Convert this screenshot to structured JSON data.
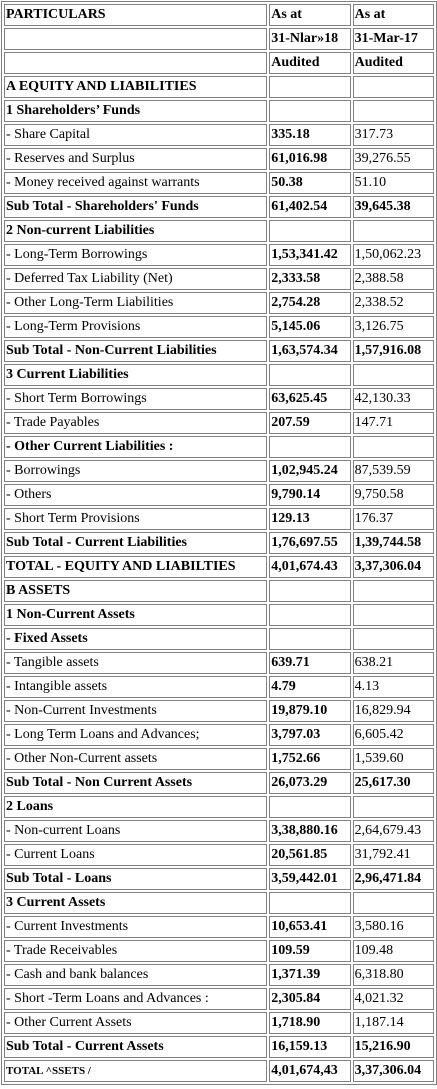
{
  "header": [
    [
      "PARTICULARS",
      "As at",
      "As at"
    ],
    [
      "",
      "31-Nlar»18",
      "31-Mar-17"
    ],
    [
      "",
      "Audited",
      "Audited"
    ]
  ],
  "rows": [
    {
      "label": "A EQUITY AND LIABILITIES",
      "v1": "",
      "v2": "",
      "bold": true,
      "b1": false,
      "b2": false
    },
    {
      "label": "1 Shareholders’ Funds",
      "v1": "",
      "v2": "",
      "bold": true,
      "b1": false,
      "b2": false
    },
    {
      "label": "- Share Capital",
      "v1": "335.18",
      "v2": "317.73",
      "bold": false,
      "b1": true,
      "b2": false
    },
    {
      "label": "- Reserves and Surplus",
      "v1": "61,016.98",
      "v2": "39,276.55",
      "bold": false,
      "b1": true,
      "b2": false
    },
    {
      "label": "- Money received against warrants",
      "v1": "50.38",
      "v2": "51.10",
      "bold": false,
      "b1": true,
      "b2": false
    },
    {
      "label": "Sub Total - Shareholders' Funds",
      "v1": "61,402.54",
      "v2": "39,645.38",
      "bold": true,
      "b1": true,
      "b2": true
    },
    {
      "label": "2 Non-current Liabilities",
      "v1": "",
      "v2": "",
      "bold": true,
      "b1": false,
      "b2": false
    },
    {
      "label": "- Long-Term Borrowings",
      "v1": "1,53,341.42",
      "v2": "1,50,062.23",
      "bold": false,
      "b1": true,
      "b2": false
    },
    {
      "label": "- Deferred Tax Liability (Net)",
      "v1": "2,333.58",
      "v2": "2,388.58",
      "bold": false,
      "b1": true,
      "b2": false
    },
    {
      "label": "- Other Long-Term Liabilities",
      "v1": "2,754.28",
      "v2": "2,338.52",
      "bold": false,
      "b1": true,
      "b2": false
    },
    {
      "label": "- Long-Term Provisions",
      "v1": "5,145.06",
      "v2": "3,126.75",
      "bold": false,
      "b1": true,
      "b2": false
    },
    {
      "label": "Sub Total - Non-Current Liabilities",
      "v1": "1,63,574.34",
      "v2": "1,57,916.08",
      "bold": true,
      "b1": true,
      "b2": true
    },
    {
      "label": "3 Current Liabilities",
      "v1": "",
      "v2": "",
      "bold": true,
      "b1": false,
      "b2": false
    },
    {
      "label": "- Short Term Borrowings",
      "v1": "63,625.45",
      "v2": "42,130.33",
      "bold": false,
      "b1": true,
      "b2": false
    },
    {
      "label": "- Trade Payables",
      "v1": "207.59",
      "v2": "147.71",
      "bold": false,
      "b1": true,
      "b2": false
    },
    {
      "label": "- Other Current Liabilities :",
      "v1": "",
      "v2": "",
      "bold": true,
      "b1": false,
      "b2": false
    },
    {
      "label": "- Borrowings",
      "v1": "1,02,945.24",
      "v2": "87,539.59",
      "bold": false,
      "b1": true,
      "b2": false
    },
    {
      "label": "- Others",
      "v1": "9,790.14",
      "v2": "9,750.58",
      "bold": false,
      "b1": true,
      "b2": false
    },
    {
      "label": "- Short Term Provisions",
      "v1": "129.13",
      "v2": "176.37",
      "bold": false,
      "b1": true,
      "b2": false
    },
    {
      "label": "Sub Total - Current Liabilities",
      "v1": "1,76,697.55",
      "v2": "1,39,744.58",
      "bold": true,
      "b1": true,
      "b2": true
    },
    {
      "label": "TOTAL - EQUITY AND LIABILTIES",
      "v1": "4,01,674.43",
      "v2": "3,37,306.04",
      "bold": true,
      "b1": true,
      "b2": true
    },
    {
      "label": "B ASSETS",
      "v1": "",
      "v2": "",
      "bold": true,
      "b1": false,
      "b2": false
    },
    {
      "label": "1 Non-Current Assets",
      "v1": "",
      "v2": "",
      "bold": true,
      "b1": false,
      "b2": false
    },
    {
      "label": "- Fixed Assets",
      "v1": "",
      "v2": "",
      "bold": true,
      "b1": false,
      "b2": false
    },
    {
      "label": "- Tangible assets",
      "v1": "639.71",
      "v2": "638.21",
      "bold": false,
      "b1": true,
      "b2": false
    },
    {
      "label": "- Intangible assets",
      "v1": "4.79",
      "v2": "4.13",
      "bold": false,
      "b1": true,
      "b2": false
    },
    {
      "label": "- Non-Current Investments",
      "v1": "19,879.10",
      "v2": "16,829.94",
      "bold": false,
      "b1": true,
      "b2": false
    },
    {
      "label": "- Long Term Loans and Advances;",
      "v1": "3,797.03",
      "v2": "6,605.42",
      "bold": false,
      "b1": true,
      "b2": false
    },
    {
      "label": "- Other Non-Current assets",
      "v1": "1,752.66",
      "v2": "1,539.60",
      "bold": false,
      "b1": true,
      "b2": false
    },
    {
      "label": "Sub Total - Non Current Assets",
      "v1": "26,073.29",
      "v2": "25,617.30",
      "bold": true,
      "b1": true,
      "b2": true
    },
    {
      "label": "2 Loans",
      "v1": "",
      "v2": "",
      "bold": true,
      "b1": false,
      "b2": false
    },
    {
      "label": "- Non-current Loans",
      "v1": "3,38,880.16",
      "v2": "2,64,679.43",
      "bold": false,
      "b1": true,
      "b2": false
    },
    {
      "label": "- Current Loans",
      "v1": "20,561.85",
      "v2": "31,792.41",
      "bold": false,
      "b1": true,
      "b2": false
    },
    {
      "label": "Sub Total - Loans",
      "v1": "3,59,442.01",
      "v2": "2,96,471.84",
      "bold": true,
      "b1": true,
      "b2": true
    },
    {
      "label": "3 Current Assets",
      "v1": "",
      "v2": "",
      "bold": true,
      "b1": false,
      "b2": false
    },
    {
      "label": "- Current Investments",
      "v1": "10,653.41",
      "v2": "3,580.16",
      "bold": false,
      "b1": true,
      "b2": false
    },
    {
      "label": "- Trade Receivables",
      "v1": "109.59",
      "v2": "109.48",
      "bold": false,
      "b1": true,
      "b2": false
    },
    {
      "label": "- Cash and bank balances",
      "v1": "1,371.39",
      "v2": "6,318.80",
      "bold": false,
      "b1": true,
      "b2": false
    },
    {
      "label": "- Short -Term Loans and Advances :",
      "v1": "2,305.84",
      "v2": "4,021.32",
      "bold": false,
      "b1": true,
      "b2": false
    },
    {
      "label": "- Other Current Assets",
      "v1": "1,718.90",
      "v2": "1,187.14",
      "bold": false,
      "b1": true,
      "b2": false
    },
    {
      "label": "Sub Total - Current Assets",
      "v1": "16,159.13",
      "v2": "15,216.90",
      "bold": true,
      "b1": true,
      "b2": true
    },
    {
      "label": "TOTAL ^SSETS /",
      "v1": "4,01,674,43",
      "v2": "3,37,306.04",
      "bold": true,
      "b1": true,
      "b2": true,
      "small": true
    }
  ]
}
